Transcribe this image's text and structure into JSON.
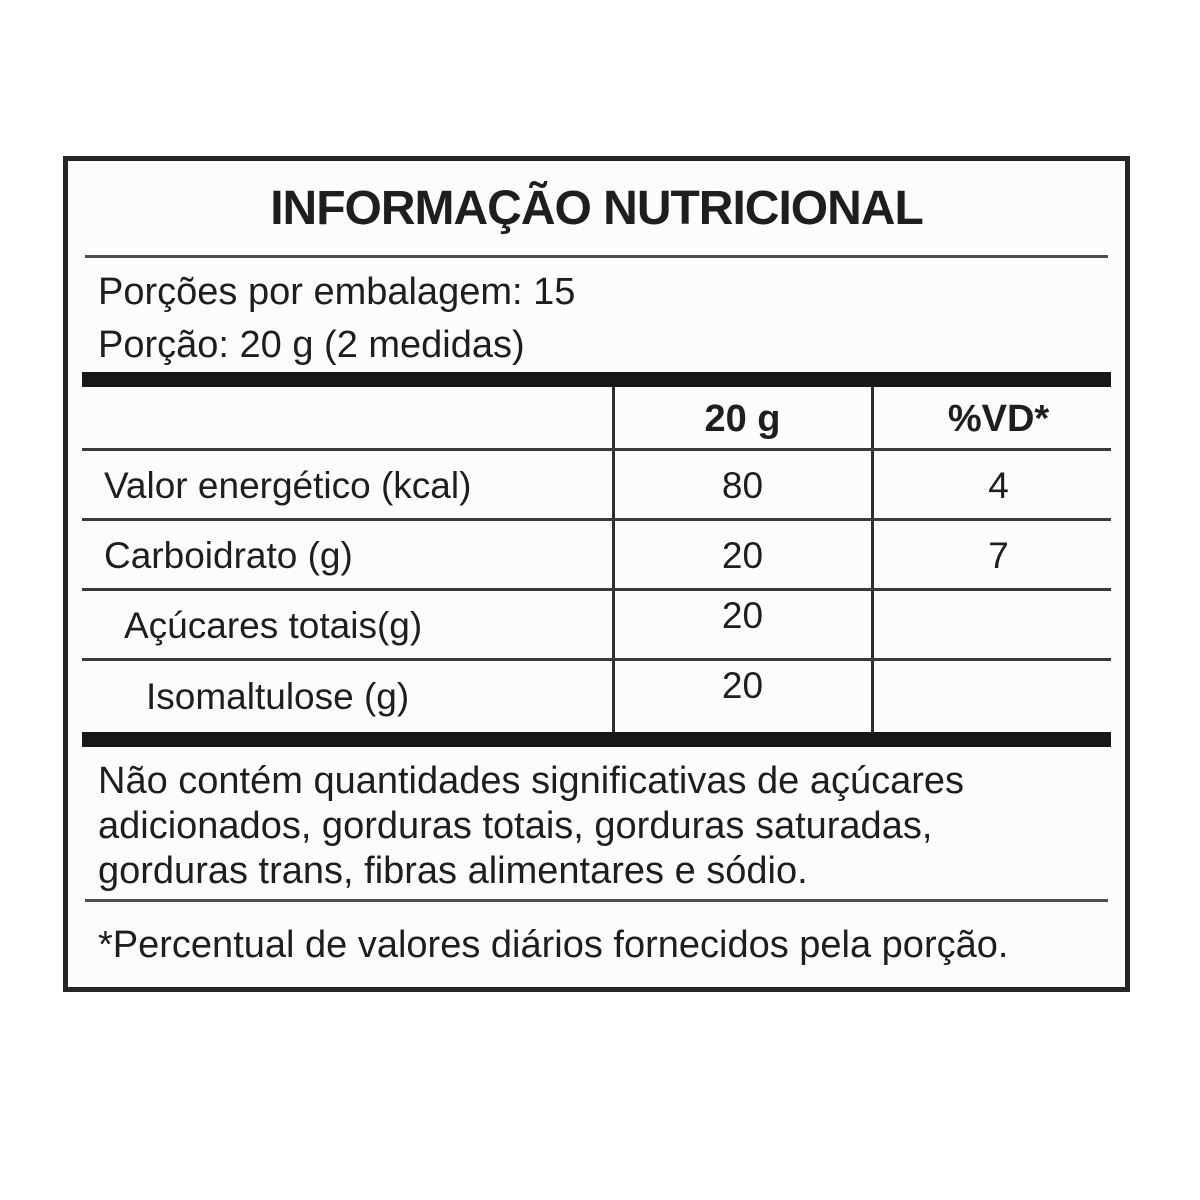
{
  "label": {
    "title": "INFORMAÇÃO NUTRICIONAL",
    "servings_per_package": "Porções por embalagem: 15",
    "serving_size": "Porção: 20 g (2 medidas)",
    "table": {
      "amount_header": "20 g",
      "dv_header": "%VD*",
      "rows": [
        {
          "name": "Valor energético (kcal)",
          "amount": "80",
          "dv": "4"
        },
        {
          "name": "Carboidrato (g)",
          "amount": "20",
          "dv": "7"
        },
        {
          "name": "Açúcares totais(g)",
          "amount": "20",
          "dv": ""
        },
        {
          "name": "Isomaltulose (g)",
          "amount": "20",
          "dv": ""
        }
      ]
    },
    "note": "Não contém quantidades significativas de açúcares adicionados, gorduras totais, gorduras saturadas, gorduras trans, fibras alimentares e sódio.",
    "footnote": "*Percentual de valores diários fornecidos pela porção.",
    "colors": {
      "ink": "#1e1e1e",
      "border": "#262626",
      "separator_bar": "#181818",
      "background": "#fcfcfc"
    }
  }
}
